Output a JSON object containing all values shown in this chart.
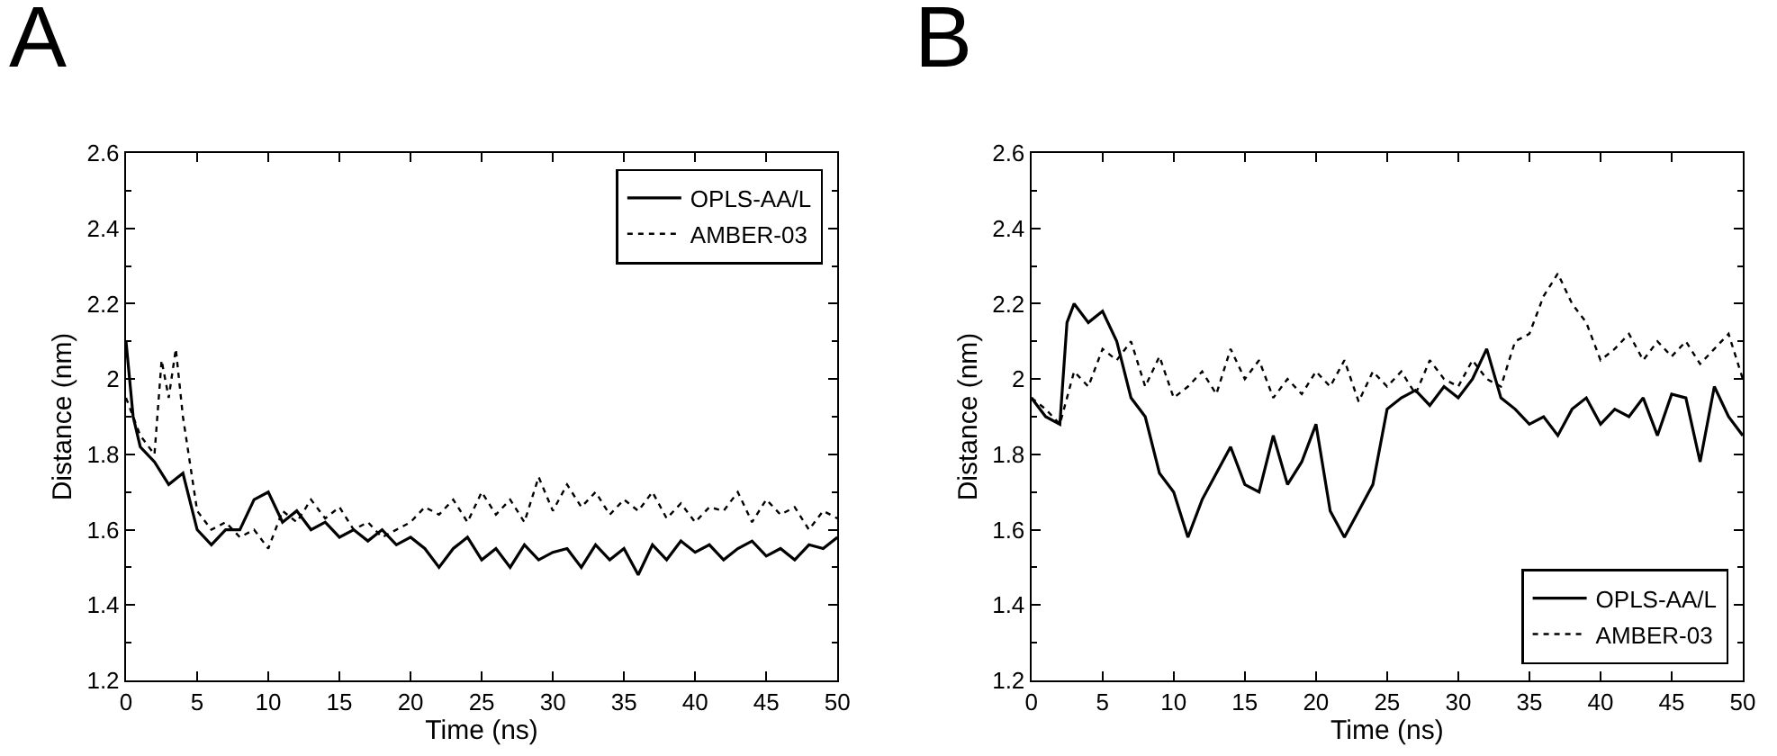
{
  "chart_data": [
    {
      "type": "line",
      "title": "A",
      "xlabel": "Time (ns)",
      "ylabel": "Distance (nm)",
      "xlim": [
        0,
        50
      ],
      "ylim": [
        1.2,
        2.6
      ],
      "xticks": [
        0,
        5,
        10,
        15,
        20,
        25,
        30,
        35,
        40,
        45,
        50
      ],
      "yticks": [
        1.2,
        1.4,
        1.6,
        1.8,
        2,
        2.2,
        2.4,
        2.6
      ],
      "legend": "top right",
      "x": [
        0,
        0.5,
        1,
        2,
        3,
        4,
        5,
        6,
        7,
        8,
        9,
        10,
        11,
        12,
        13,
        14,
        15,
        16,
        17,
        18,
        19,
        20,
        21,
        22,
        23,
        24,
        25,
        26,
        27,
        28,
        29,
        30,
        31,
        32,
        33,
        34,
        35,
        36,
        37,
        38,
        39,
        40,
        41,
        42,
        43,
        44,
        45,
        46,
        47,
        48,
        49,
        50
      ],
      "series": [
        {
          "name": "OPLS-AA/L",
          "color": "#000000",
          "line_style": "solid",
          "values": [
            2.1,
            1.9,
            1.82,
            1.78,
            1.72,
            1.75,
            1.6,
            1.56,
            1.6,
            1.6,
            1.68,
            1.7,
            1.62,
            1.65,
            1.6,
            1.62,
            1.58,
            1.6,
            1.57,
            1.6,
            1.56,
            1.58,
            1.55,
            1.5,
            1.55,
            1.58,
            1.52,
            1.55,
            1.5,
            1.56,
            1.52,
            1.54,
            1.55,
            1.5,
            1.56,
            1.52,
            1.55,
            1.48,
            1.56,
            1.52,
            1.57,
            1.54,
            1.56,
            1.52,
            1.55,
            1.57,
            1.53,
            1.55,
            1.52,
            1.56,
            1.55,
            1.58
          ]
        },
        {
          "name": "AMBER-03",
          "color": "#000000",
          "line_style": "dotted",
          "x": [
            0,
            1,
            2,
            2.5,
            3,
            3.5,
            4,
            5,
            6,
            7,
            8,
            9,
            10,
            11,
            12,
            13,
            14,
            15,
            16,
            17,
            18,
            19,
            20,
            21,
            22,
            23,
            24,
            25,
            26,
            27,
            28,
            29,
            30,
            31,
            32,
            33,
            34,
            35,
            36,
            37,
            38,
            39,
            40,
            41,
            42,
            43,
            44,
            45,
            46,
            47,
            48,
            49,
            50
          ],
          "values": [
            1.95,
            1.85,
            1.8,
            2.05,
            1.95,
            2.08,
            1.9,
            1.65,
            1.6,
            1.62,
            1.58,
            1.6,
            1.55,
            1.65,
            1.62,
            1.68,
            1.63,
            1.66,
            1.6,
            1.62,
            1.58,
            1.6,
            1.62,
            1.66,
            1.64,
            1.68,
            1.62,
            1.7,
            1.64,
            1.68,
            1.62,
            1.74,
            1.65,
            1.72,
            1.66,
            1.7,
            1.64,
            1.68,
            1.65,
            1.7,
            1.63,
            1.67,
            1.62,
            1.66,
            1.65,
            1.7,
            1.62,
            1.68,
            1.64,
            1.66,
            1.6,
            1.65,
            1.63
          ]
        }
      ]
    },
    {
      "type": "line",
      "title": "B",
      "xlabel": "Time (ns)",
      "ylabel": "Distance (nm)",
      "xlim": [
        0,
        50
      ],
      "ylim": [
        1.2,
        2.6
      ],
      "xticks": [
        0,
        5,
        10,
        15,
        20,
        25,
        30,
        35,
        40,
        45,
        50
      ],
      "yticks": [
        1.2,
        1.4,
        1.6,
        1.8,
        2,
        2.2,
        2.4,
        2.6
      ],
      "legend": "bottom right",
      "x": [
        0,
        1,
        2,
        2.5,
        3,
        4,
        5,
        6,
        7,
        8,
        9,
        10,
        11,
        12,
        13,
        14,
        15,
        16,
        17,
        18,
        19,
        20,
        21,
        22,
        23,
        24,
        25,
        26,
        27,
        28,
        29,
        30,
        31,
        32,
        33,
        34,
        35,
        36,
        37,
        38,
        39,
        40,
        41,
        42,
        43,
        44,
        45,
        46,
        47,
        48,
        49,
        50
      ],
      "series": [
        {
          "name": "OPLS-AA/L",
          "color": "#000000",
          "line_style": "solid",
          "values": [
            1.95,
            1.9,
            1.88,
            2.15,
            2.2,
            2.15,
            2.18,
            2.1,
            1.95,
            1.9,
            1.75,
            1.7,
            1.58,
            1.68,
            1.75,
            1.82,
            1.72,
            1.7,
            1.85,
            1.72,
            1.78,
            1.88,
            1.65,
            1.58,
            1.65,
            1.72,
            1.92,
            1.95,
            1.97,
            1.93,
            1.98,
            1.95,
            2.0,
            2.08,
            1.95,
            1.92,
            1.88,
            1.9,
            1.85,
            1.92,
            1.95,
            1.88,
            1.92,
            1.9,
            1.95,
            1.85,
            1.96,
            1.95,
            1.78,
            1.98,
            1.9,
            1.85
          ]
        },
        {
          "name": "AMBER-03",
          "color": "#000000",
          "line_style": "dotted",
          "x": [
            0,
            1,
            2,
            3,
            4,
            5,
            6,
            7,
            8,
            9,
            10,
            11,
            12,
            13,
            14,
            15,
            16,
            17,
            18,
            19,
            20,
            21,
            22,
            23,
            24,
            25,
            26,
            27,
            28,
            29,
            30,
            31,
            32,
            33,
            34,
            35,
            36,
            37,
            38,
            39,
            40,
            41,
            42,
            43,
            44,
            45,
            46,
            47,
            48,
            49,
            50
          ],
          "values": [
            1.95,
            1.92,
            1.88,
            2.02,
            1.98,
            2.08,
            2.05,
            2.1,
            1.98,
            2.06,
            1.95,
            1.98,
            2.02,
            1.96,
            2.08,
            2.0,
            2.05,
            1.95,
            2.0,
            1.96,
            2.02,
            1.98,
            2.05,
            1.94,
            2.02,
            1.98,
            2.02,
            1.96,
            2.05,
            2.0,
            1.98,
            2.05,
            2.0,
            1.98,
            2.1,
            2.12,
            2.22,
            2.28,
            2.2,
            2.15,
            2.05,
            2.08,
            2.12,
            2.05,
            2.1,
            2.06,
            2.1,
            2.04,
            2.08,
            2.12,
            2.0
          ]
        }
      ]
    }
  ]
}
